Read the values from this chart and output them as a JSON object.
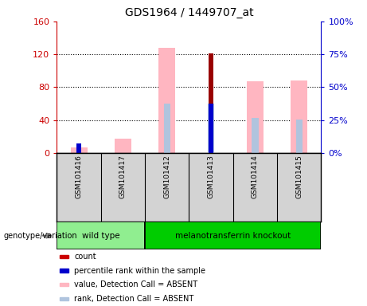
{
  "title": "GDS1964 / 1449707_at",
  "samples": [
    "GSM101416",
    "GSM101417",
    "GSM101412",
    "GSM101413",
    "GSM101414",
    "GSM101415"
  ],
  "left_ylim": [
    0,
    160
  ],
  "right_ylim": [
    0,
    100
  ],
  "left_yticks": [
    0,
    40,
    80,
    120,
    160
  ],
  "right_yticks": [
    0,
    25,
    50,
    75,
    100
  ],
  "left_yticklabels": [
    "0",
    "40",
    "80",
    "120",
    "160"
  ],
  "right_yticklabels": [
    "0%",
    "25%",
    "50%",
    "75%",
    "100%"
  ],
  "pink_values": [
    7,
    17,
    128,
    0,
    87,
    88
  ],
  "pink_rank_values": [
    0,
    0,
    60,
    60,
    43,
    41
  ],
  "red_values": [
    0,
    0,
    0,
    121,
    0,
    0
  ],
  "blue_values": [
    12,
    0,
    0,
    60,
    0,
    0
  ],
  "color_pink": "#ffb6c1",
  "color_pink_rank": "#b0c4de",
  "color_red": "#990000",
  "color_blue": "#0000cc",
  "left_axis_color": "#cc0000",
  "right_axis_color": "#0000cc",
  "bg_color": "#ffffff",
  "grid_color": "black",
  "genotype_label": "genotype/variation",
  "subplot_bg": "#d3d3d3",
  "wt_color": "#90ee90",
  "ko_color": "#00cc00",
  "group_names": [
    "wild type",
    "melanotransferrin knockout"
  ],
  "legend_items": [
    {
      "color": "#cc0000",
      "label": "count"
    },
    {
      "color": "#0000cc",
      "label": "percentile rank within the sample"
    },
    {
      "color": "#ffb6c1",
      "label": "value, Detection Call = ABSENT"
    },
    {
      "color": "#b0c4de",
      "label": "rank, Detection Call = ABSENT"
    }
  ]
}
